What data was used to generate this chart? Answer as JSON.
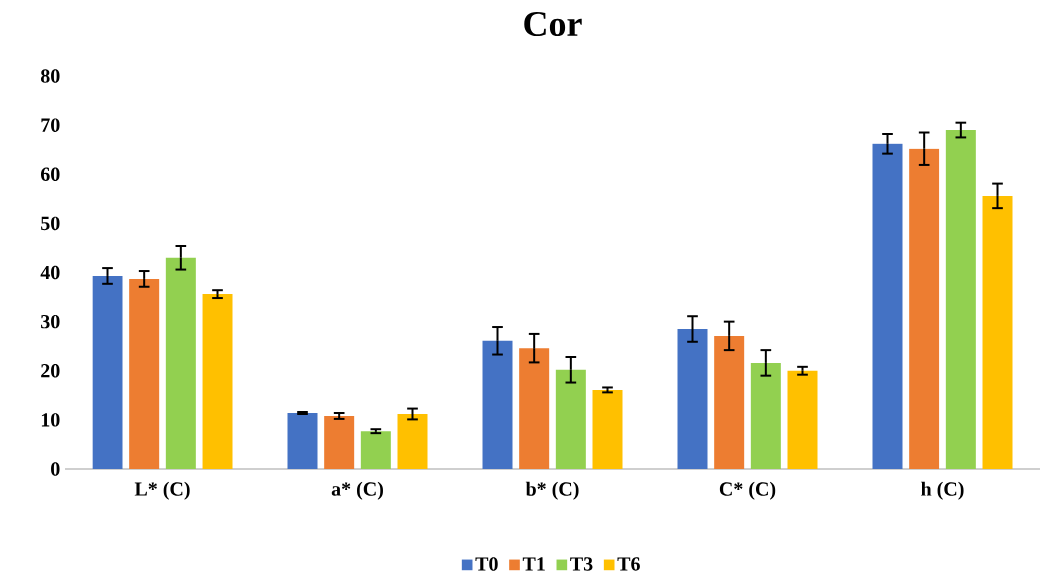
{
  "chart_data": {
    "type": "bar",
    "title": "Cor",
    "categories": [
      "L* (C)",
      "a* (C)",
      "b* (C)",
      "C* (C)",
      "h (C)"
    ],
    "series": [
      {
        "name": "T0",
        "color": "#4472c4",
        "values": [
          39.3,
          11.4,
          26.1,
          28.5,
          66.2
        ],
        "errors": [
          1.6,
          0.2,
          2.8,
          2.6,
          2.0
        ]
      },
      {
        "name": "T1",
        "color": "#ed7d31",
        "values": [
          38.7,
          10.8,
          24.6,
          27.1,
          65.2
        ],
        "errors": [
          1.6,
          0.6,
          2.9,
          2.9,
          3.3
        ]
      },
      {
        "name": "T3",
        "color": "#92d050",
        "values": [
          43.0,
          7.7,
          20.2,
          21.6,
          69.0
        ],
        "errors": [
          2.4,
          0.4,
          2.6,
          2.6,
          1.5
        ]
      },
      {
        "name": "T6",
        "color": "#ffc000",
        "values": [
          35.6,
          11.2,
          16.1,
          20.0,
          55.6
        ],
        "errors": [
          0.8,
          1.1,
          0.5,
          0.8,
          2.5
        ]
      }
    ],
    "ylim": [
      0,
      80
    ],
    "yticks": [
      0,
      10,
      20,
      30,
      40,
      50,
      60,
      70,
      80
    ],
    "grid": false,
    "legend": "bottom"
  }
}
